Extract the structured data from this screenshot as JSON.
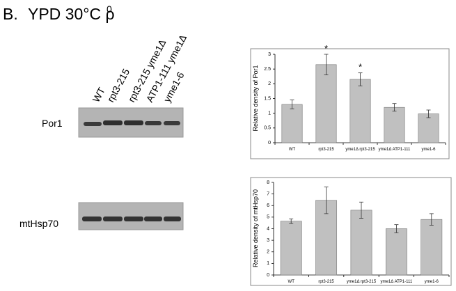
{
  "figure": {
    "panel": "B.",
    "title": "YPD 30°C ρ",
    "superscript": "0",
    "lane_labels": [
      "WT",
      "rpt3-215",
      "rpt3-215 yme1Δ",
      "ATP1-111 yme1Δ",
      "yme1-6"
    ],
    "blots": [
      "Por1",
      "mtHsp70"
    ]
  },
  "chart_data": [
    {
      "type": "bar",
      "ylabel": "Relative density of Por1",
      "categories": [
        "WT",
        "rpt3-215",
        "yme1Δ rpt3-215",
        "yme1Δ ATP1-111",
        "yme1-6"
      ],
      "values": [
        1.3,
        2.65,
        2.15,
        1.2,
        0.98
      ],
      "errors": [
        0.15,
        0.35,
        0.22,
        0.13,
        0.13
      ],
      "significance": [
        null,
        "*",
        "*",
        null,
        null
      ],
      "color": "#c0c0c0",
      "ylim": [
        0,
        3
      ],
      "yticks": [
        0,
        0.5,
        1,
        1.5,
        2,
        2.5,
        3
      ]
    },
    {
      "type": "bar",
      "ylabel": "Relative density of  mtHsp70",
      "categories": [
        "WT",
        "rpt3-215",
        "yme1Δ rpt3-215",
        "yme1Δ ATP1-111",
        "yme1-6"
      ],
      "values": [
        4.65,
        6.45,
        5.6,
        4.0,
        4.8
      ],
      "errors": [
        0.2,
        1.15,
        0.7,
        0.35,
        0.5
      ],
      "color": "#c0c0c0",
      "ylim": [
        0,
        8
      ],
      "yticks": [
        0,
        1,
        2,
        3,
        4,
        5,
        6,
        7,
        8
      ]
    }
  ]
}
